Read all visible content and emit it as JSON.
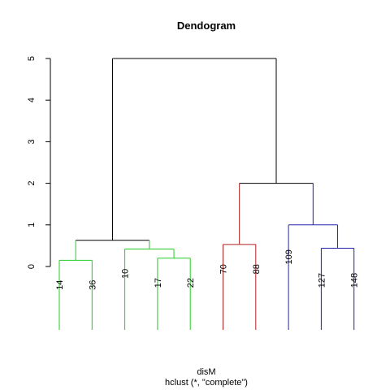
{
  "chart_data": {
    "type": "dendrogram",
    "title": "Dendogram",
    "xlabel": "disM",
    "subtitle": "hclust (*, \"complete\")",
    "ylim": [
      0,
      5
    ],
    "yticks": [
      "0",
      "1",
      "2",
      "3",
      "4",
      "5"
    ],
    "leaves": [
      "14",
      "36",
      "10",
      "17",
      "22",
      "70",
      "88",
      "109",
      "127",
      "148"
    ],
    "leaf_colors": [
      "#22cc22",
      "#22cc22",
      "#22cc22",
      "#22cc22",
      "#22cc22",
      "#b22222",
      "#b22222",
      "#2222aa",
      "#2222aa",
      "#2222aa"
    ],
    "merges": [
      {
        "left": "L0",
        "right": "L1",
        "height": 0.15
      },
      {
        "left": "L3",
        "right": "L4",
        "height": 0.2
      },
      {
        "left": "L2",
        "right": "M1",
        "height": 0.42
      },
      {
        "left": "M0",
        "right": "M2",
        "height": 0.63
      },
      {
        "left": "L5",
        "right": "L6",
        "height": 0.53
      },
      {
        "left": "L8",
        "right": "L9",
        "height": 0.44
      },
      {
        "left": "L7",
        "right": "M5",
        "height": 1.0
      },
      {
        "left": "M4",
        "right": "M6",
        "height": 2.0
      },
      {
        "left": "M3",
        "right": "M7",
        "height": 5.0
      }
    ],
    "cluster_colors": {
      "M0": "#22cc22",
      "M1": "#22cc22",
      "M2": "#22cc22",
      "M4": "#b22222",
      "M5": "#2222aa",
      "M6": "#2222aa"
    }
  }
}
